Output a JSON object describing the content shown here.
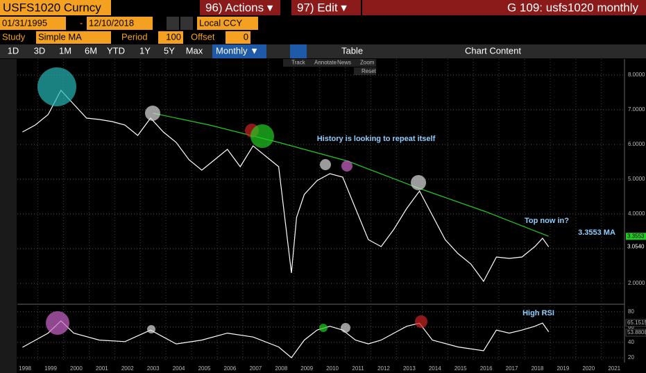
{
  "toolbar": {
    "ticker": "USFS1020 Curncy",
    "actions": "96) Actions ▾",
    "edit": "97) Edit ▾",
    "page_title": "G 109: usfs1020 monthly",
    "start_date": "01/31/1995",
    "end_date": "12/10/2018",
    "currency": "Local CCY",
    "study_label": "Study",
    "study": "Simple MA",
    "period_label": "Period",
    "period": "100",
    "offset_label": "Offset",
    "offset": "0",
    "ranges": [
      "1D",
      "3D",
      "1M",
      "6M",
      "YTD",
      "1Y",
      "5Y",
      "Max"
    ],
    "frequency": "Monthly ▼",
    "table": "Table",
    "chart_content": "Chart Content",
    "tools": [
      "Track",
      "Annotate",
      "News",
      "Zoom"
    ],
    "reset": "Reset"
  },
  "chart_data": [
    {
      "type": "line",
      "xlim": [
        1998.2,
        2021.9
      ],
      "ylim": [
        1.42,
        8.46
      ],
      "xticks": [
        1998,
        1999,
        2000,
        2001,
        2002,
        2003,
        2004,
        2005,
        2006,
        2007,
        2008,
        2009,
        2010,
        2011,
        2012,
        2013,
        2014,
        2015,
        2016,
        2017,
        2018,
        2019,
        2020,
        2021
      ],
      "yticks": [
        {
          "value": 2,
          "label": "2.0000"
        },
        {
          "value": 3,
          "label": "3.0000"
        },
        {
          "value": 4,
          "label": "4.0000"
        },
        {
          "value": 5,
          "label": "5.0000"
        },
        {
          "value": 6,
          "label": "6.0000"
        },
        {
          "value": 7,
          "label": "7.0000"
        },
        {
          "value": 8,
          "label": "8.0000"
        }
      ],
      "grid": true,
      "series": [
        {
          "color": "#ffffff",
          "end_label": "3.0540",
          "x": [
            1998.4,
            1998.9,
            1999.4,
            1999.9,
            2000.4,
            2000.9,
            2001.4,
            2001.9,
            2002.4,
            2002.9,
            2003.4,
            2003.9,
            2004.4,
            2004.9,
            2005.4,
            2005.9,
            2006.4,
            2006.9,
            2007.4,
            2007.9,
            2008.4,
            2008.9,
            2009.1,
            2009.4,
            2009.9,
            2010.4,
            2010.9,
            2011.4,
            2011.9,
            2012.4,
            2012.9,
            2013.4,
            2013.9,
            2014.4,
            2014.9,
            2015.4,
            2015.9,
            2016.4,
            2016.9,
            2017.4,
            2017.9,
            2018.4,
            2018.7,
            2018.94
          ],
          "values": [
            6.36,
            6.56,
            6.86,
            7.56,
            7.16,
            6.76,
            6.72,
            6.66,
            6.56,
            6.26,
            6.76,
            6.36,
            6.06,
            5.56,
            5.26,
            5.56,
            5.86,
            5.36,
            5.96,
            5.66,
            5.36,
            2.3,
            3.9,
            4.56,
            4.96,
            5.16,
            5.06,
            4.16,
            3.26,
            3.06,
            3.56,
            4.16,
            4.66,
            3.96,
            3.26,
            2.86,
            2.56,
            2.06,
            2.76,
            2.72,
            2.76,
            3.06,
            3.3,
            3.054
          ]
        },
        {
          "color": "#22cc22",
          "end_label": "3.3553",
          "x": [
            2003.5,
            2005.7,
            2008.4,
            2011.1,
            2013.8,
            2016.5,
            2018.94
          ],
          "values": [
            6.9,
            6.56,
            6.06,
            5.52,
            4.76,
            4.06,
            3.3553
          ]
        }
      ],
      "annotations": [
        "History is looking to repeat itself",
        "Top now in?",
        "3.3553 MA"
      ]
    },
    {
      "type": "line",
      "xlim": [
        1998.2,
        2021.9
      ],
      "ylim": [
        15,
        87
      ],
      "yticks": [
        20,
        40,
        60,
        80
      ],
      "grid": true,
      "series": [
        {
          "color": "#ffffff",
          "x": [
            1998.4,
            1999.4,
            1999.9,
            2000.4,
            2001.4,
            2002.4,
            2003.4,
            2004.4,
            2005.4,
            2006.4,
            2007.4,
            2008.4,
            2008.9,
            2009.4,
            2009.9,
            2010.4,
            2010.9,
            2011.4,
            2011.9,
            2012.4,
            2012.9,
            2013.4,
            2013.9,
            2014.4,
            2015.4,
            2016.4,
            2016.9,
            2017.4,
            2017.9,
            2018.4,
            2018.7,
            2018.94
          ],
          "values": [
            33.6,
            52,
            68,
            52,
            43,
            41,
            56,
            38,
            43,
            52,
            47,
            34,
            20,
            43,
            56,
            61,
            56,
            43,
            38,
            43,
            52,
            61,
            65,
            43,
            34,
            29,
            56,
            52,
            56,
            61,
            65.1515,
            53.8808
          ]
        }
      ],
      "end_labels": [
        "65.1515",
        "53.8808"
      ],
      "annotations": [
        "High RSI"
      ]
    }
  ]
}
